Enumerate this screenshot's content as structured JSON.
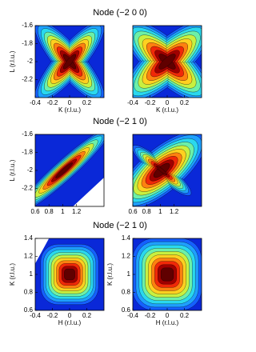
{
  "chart_data": [
    {
      "type": "contour",
      "title": "Node (−2 0 0)",
      "xlabel": "K (r.l.u.)",
      "ylabel": "L (r.l.u.)",
      "xlim": [
        -0.4,
        0.4
      ],
      "xticks": [
        -0.4,
        -0.2,
        0,
        0.2
      ],
      "ylim": [
        -2.4,
        -1.6
      ],
      "yticks": [
        -1.6,
        -1.8,
        -2,
        -2.2
      ]
    },
    {
      "type": "contour",
      "xlabel": "K (r.l.u.)",
      "xlim": [
        -0.4,
        0.4
      ],
      "xticks": [
        -0.4,
        -0.2,
        0,
        0.2
      ]
    },
    {
      "type": "contour",
      "title": "Node (−2 1 0)",
      "ylabel": "L (r.l.u.)",
      "xlim": [
        0.6,
        1.6
      ],
      "xticks": [
        0.6,
        0.8,
        1,
        1.2
      ],
      "ylim": [
        -2.4,
        -1.6
      ],
      "yticks": [
        -1.6,
        -1.8,
        -2,
        -2.2
      ]
    },
    {
      "type": "contour",
      "xlim": [
        0.6,
        1.6
      ],
      "xticks": [
        0.6,
        0.8,
        1,
        1.2
      ]
    },
    {
      "type": "contour",
      "title": "Node (−2 1 0)",
      "xlabel": "H (r.l.u.)",
      "ylabel": "K (r.l.u.)",
      "xlim": [
        -0.4,
        0.4
      ],
      "xticks": [
        -0.4,
        -0.2,
        0,
        0.2
      ],
      "ylim": [
        0.6,
        1.4
      ],
      "yticks": [
        0.6,
        0.8,
        1,
        1.2,
        1.4
      ]
    },
    {
      "type": "contour",
      "xlabel": "H (r.l.u.)",
      "ylabel": "K (r.l.u.)",
      "xlim": [
        -0.4,
        0.4
      ],
      "xticks": [
        -0.4,
        -0.2,
        0,
        0.2
      ],
      "ylim": [
        0.6,
        1.4
      ],
      "yticks": [
        0.6,
        0.8,
        1,
        1.2,
        1.4
      ]
    }
  ]
}
